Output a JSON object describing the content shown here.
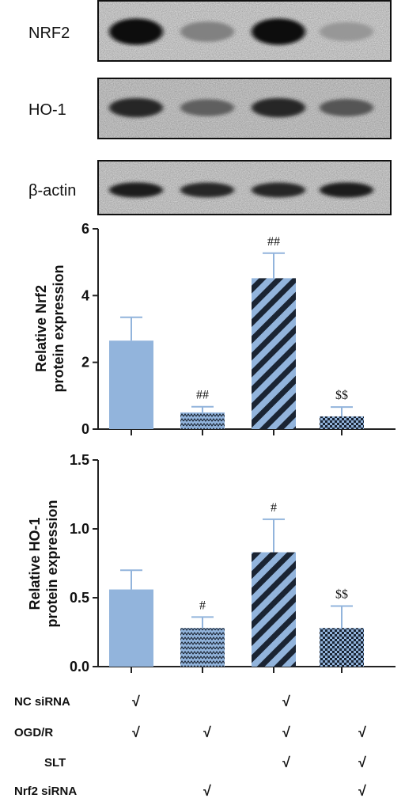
{
  "blot": {
    "rows": [
      {
        "label": "NRF2",
        "intensity": [
          0.95,
          0.45,
          0.95,
          0.35
        ]
      },
      {
        "label": "HO-1",
        "intensity": [
          0.85,
          0.6,
          0.85,
          0.65
        ]
      },
      {
        "label": "β-actin",
        "intensity": [
          0.9,
          0.85,
          0.85,
          0.9
        ]
      }
    ]
  },
  "colors": {
    "bar_fill": "#92b4dc",
    "bar_dark": "#1a2433",
    "axis": "#222222"
  },
  "chart_data": [
    {
      "type": "bar",
      "ylabel": [
        "Relative Nrf2",
        "protein expression"
      ],
      "ylim": [
        0,
        6
      ],
      "yticks": [
        "0",
        "2",
        "4",
        "6"
      ],
      "values": [
        2.65,
        0.5,
        4.52,
        0.38
      ],
      "errors": [
        0.7,
        0.17,
        0.75,
        0.28
      ],
      "patterns": [
        "solid",
        "wave",
        "diag",
        "check"
      ],
      "annotations": [
        "",
        "##",
        "##",
        "$$"
      ]
    },
    {
      "type": "bar",
      "ylabel": [
        "Relative HO-1",
        "protein expression"
      ],
      "ylim": [
        0,
        1.5
      ],
      "yticks": [
        "0.0",
        "0.5",
        "1.0",
        "1.5"
      ],
      "values": [
        0.56,
        0.28,
        0.83,
        0.28
      ],
      "errors": [
        0.14,
        0.08,
        0.24,
        0.16
      ],
      "patterns": [
        "solid",
        "wave",
        "diag",
        "check"
      ],
      "annotations": [
        "",
        "#",
        "#",
        "$$"
      ]
    }
  ],
  "treatment_table": {
    "check_symbol": "√",
    "rows": [
      {
        "label": "NC siRNA",
        "checks": [
          true,
          false,
          true,
          false
        ]
      },
      {
        "label": "OGD/R",
        "checks": [
          true,
          true,
          true,
          true
        ]
      },
      {
        "label": "SLT",
        "checks": [
          false,
          false,
          true,
          true
        ]
      },
      {
        "label": "Nrf2 siRNA",
        "checks": [
          false,
          true,
          false,
          true
        ]
      }
    ]
  }
}
